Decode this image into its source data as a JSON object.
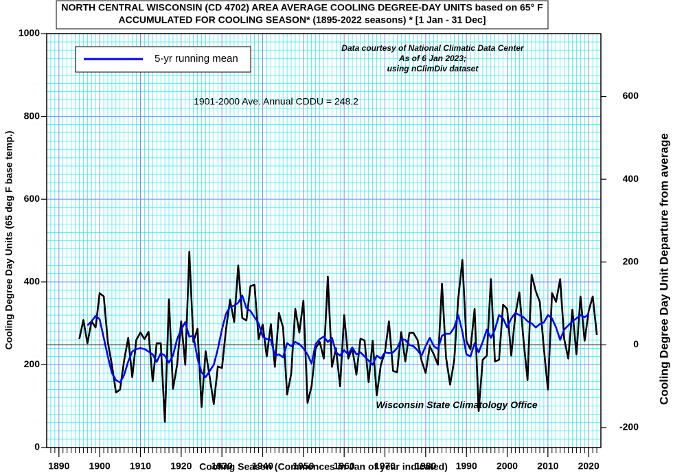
{
  "chart_data": {
    "type": "line",
    "title": [
      "NORTH CENTRAL WISCONSIN (CD 4702) AREA AVERAGE COOLING DEGREE-DAY UNITS based on 65° F",
      "ACCUMULATED FOR COOLING SEASON*  (1895-2022 seasons) * [1 Jan - 31 Dec]"
    ],
    "annotations": [
      "Data courtesy of National Climatic Data Center",
      "As of 6 Jan  2023;",
      "using nClimDiv dataset",
      "1901-2000 Ave. Annual CDDU = 248.2",
      "Wisconsin State Climatology Office"
    ],
    "x_label": "Cooling Season (Commences in Jan of year indicated)",
    "y_label": "Cooling Degree Day Units (65 deg F base temp.)",
    "y2_label": "Cooling Degree Day Unit Departure from average",
    "average": 248.2,
    "x": [
      1895,
      1896,
      1897,
      1898,
      1899,
      1900,
      1901,
      1902,
      1903,
      1904,
      1905,
      1906,
      1907,
      1908,
      1909,
      1910,
      1911,
      1912,
      1913,
      1914,
      1915,
      1916,
      1917,
      1918,
      1919,
      1920,
      1921,
      1922,
      1923,
      1924,
      1925,
      1926,
      1927,
      1928,
      1929,
      1930,
      1931,
      1932,
      1933,
      1934,
      1935,
      1936,
      1937,
      1938,
      1939,
      1940,
      1941,
      1942,
      1943,
      1944,
      1945,
      1946,
      1947,
      1948,
      1949,
      1950,
      1951,
      1952,
      1953,
      1954,
      1955,
      1956,
      1957,
      1958,
      1959,
      1960,
      1961,
      1962,
      1963,
      1964,
      1965,
      1966,
      1967,
      1968,
      1969,
      1970,
      1971,
      1972,
      1973,
      1974,
      1975,
      1976,
      1977,
      1978,
      1979,
      1980,
      1981,
      1982,
      1983,
      1984,
      1985,
      1986,
      1987,
      1988,
      1989,
      1990,
      1991,
      1992,
      1993,
      1994,
      1995,
      1996,
      1997,
      1998,
      1999,
      2000,
      2001,
      2002,
      2003,
      2004,
      2005,
      2006,
      2007,
      2008,
      2009,
      2010,
      2011,
      2012,
      2013,
      2014,
      2015,
      2016,
      2017,
      2018,
      2019,
      2020,
      2021,
      2022
    ],
    "series": [
      {
        "color": "#000000",
        "values": [
          262,
          308,
          252,
          305,
          290,
          373,
          365,
          255,
          200,
          133,
          140,
          210,
          265,
          170,
          260,
          278,
          262,
          280,
          160,
          252,
          252,
          62,
          358,
          142,
          200,
          305,
          200,
          473,
          255,
          287,
          98,
          233,
          170,
          105,
          196,
          192,
          285,
          357,
          303,
          440,
          313,
          307,
          390,
          393,
          262,
          297,
          220,
          298,
          195,
          325,
          290,
          128,
          178,
          335,
          278,
          355,
          108,
          148,
          240,
          255,
          215,
          413,
          195,
          240,
          148,
          320,
          215,
          240,
          176,
          263,
          259,
          158,
          258,
          126,
          200,
          230,
          305,
          185,
          182,
          279,
          208,
          277,
          277,
          260,
          210,
          180,
          245,
          225,
          200,
          396,
          218,
          152,
          210,
          360,
          453,
          257,
          237,
          335,
          88,
          212,
          222,
          407,
          208,
          212,
          345,
          335,
          222,
          320,
          375,
          260,
          163,
          418,
          378,
          352,
          240,
          140,
          373,
          352,
          407,
          262,
          215,
          333,
          225,
          365,
          258,
          330,
          365,
          272
        ]
      },
      {
        "name": "5-yr running mean",
        "color": "#0000ff",
        "values": [
          null,
          null,
          295,
          305,
          318,
          310,
          265,
          220,
          180,
          163,
          157,
          175,
          208,
          232,
          238,
          240,
          238,
          232,
          225,
          207,
          228,
          222,
          205,
          222,
          262,
          285,
          303,
          268,
          270,
          215,
          182,
          170,
          185,
          200,
          238,
          285,
          323,
          340,
          343,
          350,
          367,
          337,
          330,
          315,
          300,
          268,
          262,
          260,
          222,
          225,
          218,
          252,
          245,
          255,
          250,
          240,
          225,
          203,
          250,
          262,
          268,
          255,
          265,
          230,
          222,
          235,
          225,
          242,
          225,
          230,
          220,
          210,
          200,
          222,
          215,
          230,
          228,
          230,
          240,
          262,
          260,
          248,
          245,
          235,
          222,
          245,
          265,
          245,
          238,
          270,
          275,
          275,
          290,
          320,
          280,
          225,
          220,
          252,
          230,
          255,
          285,
          265,
          285,
          320,
          312,
          290,
          312,
          325,
          320,
          315,
          305,
          300,
          290,
          298,
          302,
          320,
          312,
          290,
          260,
          285,
          295,
          305,
          312,
          320,
          315,
          322,
          null,
          null
        ]
      }
    ],
    "xlim": [
      1887,
      2023
    ],
    "xticks": [
      1890,
      1900,
      1910,
      1920,
      1930,
      1940,
      1950,
      1960,
      1970,
      1980,
      1990,
      2000,
      2010,
      2020
    ],
    "ylim": [
      0,
      1000
    ],
    "yticks": [
      0,
      200,
      400,
      600,
      800,
      1000
    ],
    "y2lim": [
      -248.2,
      751.8
    ],
    "y2ticks": [
      -200,
      0,
      200,
      400,
      600
    ],
    "grid": true,
    "legend": "upper left"
  }
}
